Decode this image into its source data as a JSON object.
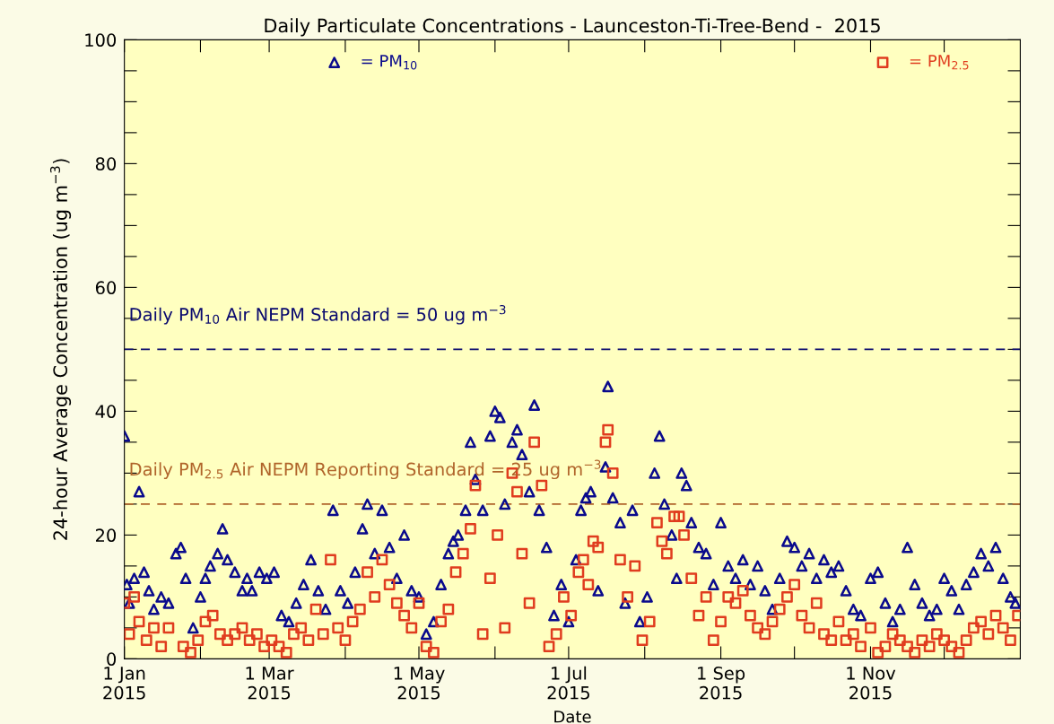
{
  "chart_data": {
    "type": "scatter",
    "title": "Daily Particulate Concentrations - Launceston-Ti-Tree-Bend -  2015",
    "xlabel": "Date",
    "ylabel": "24-hour Average Concentration (ug m$^{−3}$)",
    "xlim": [
      "2015-01-01",
      "2016-01-01"
    ],
    "xticks": [
      {
        "value": "2015-01-01",
        "label": "1 Jan\n2015"
      },
      {
        "value": "2015-02-01",
        "label": null
      },
      {
        "value": "2015-03-01",
        "label": "1 Mar\n2015"
      },
      {
        "value": "2015-04-01",
        "label": null
      },
      {
        "value": "2015-05-01",
        "label": "1 May\n2015"
      },
      {
        "value": "2015-06-01",
        "label": null
      },
      {
        "value": "2015-07-01",
        "label": "1 Jul\n2015"
      },
      {
        "value": "2015-08-01",
        "label": null
      },
      {
        "value": "2015-09-01",
        "label": "1 Sep\n2015"
      },
      {
        "value": "2015-10-01",
        "label": null
      },
      {
        "value": "2015-11-01",
        "label": "1 Nov\n2015"
      },
      {
        "value": "2015-12-01",
        "label": null
      }
    ],
    "ylim": [
      0,
      100
    ],
    "yticks": [
      0,
      {
        "value": 5,
        "label": null
      },
      {
        "value": 10,
        "label": null
      },
      {
        "value": 15,
        "label": null
      },
      20,
      {
        "value": 25,
        "label": null
      },
      {
        "value": 30,
        "label": null
      },
      {
        "value": 35,
        "label": null
      },
      40,
      {
        "value": 45,
        "label": null
      },
      {
        "value": 50,
        "label": null
      },
      {
        "value": 55,
        "label": null
      },
      60,
      {
        "value": 65,
        "label": null
      },
      {
        "value": 70,
        "label": null
      },
      {
        "value": 75,
        "label": null
      },
      80,
      {
        "value": 85,
        "label": null
      },
      {
        "value": 90,
        "label": null
      },
      {
        "value": 95,
        "label": null
      },
      100
    ],
    "grid": false,
    "legend": "top",
    "ref_lines": [
      {
        "axis": "y",
        "value": 50,
        "label": "Daily PM$_{10}$ Air NEPM Standard = 50 ug m$^{−3}$",
        "color": "#0a0a6e",
        "line_style": "dashed"
      },
      {
        "axis": "y",
        "value": 25,
        "label": "Daily PM$_{2.5}$ Air NEPM Reporting Standard = 25 ug m$^{−3}$",
        "color": "#b0642a",
        "line_style": "dashed"
      }
    ],
    "series": [
      {
        "name": "= PM$_{10}$",
        "color": "#0a0a8c",
        "marker": "triangle",
        "x": [
          "2015-01-01",
          "2015-01-02",
          "2015-01-03",
          "2015-01-05",
          "2015-01-07",
          "2015-01-09",
          "2015-01-11",
          "2015-01-13",
          "2015-01-16",
          "2015-01-19",
          "2015-01-22",
          "2015-01-24",
          "2015-01-26",
          "2015-01-29",
          "2015-02-01",
          "2015-02-03",
          "2015-02-05",
          "2015-02-08",
          "2015-02-10",
          "2015-02-12",
          "2015-02-15",
          "2015-02-18",
          "2015-02-20",
          "2015-02-22",
          "2015-02-25",
          "2015-02-28",
          "2015-03-03",
          "2015-03-06",
          "2015-03-09",
          "2015-03-12",
          "2015-03-15",
          "2015-03-18",
          "2015-03-21",
          "2015-03-24",
          "2015-03-27",
          "2015-03-30",
          "2015-04-02",
          "2015-04-05",
          "2015-04-08",
          "2015-04-10",
          "2015-04-13",
          "2015-04-16",
          "2015-04-19",
          "2015-04-22",
          "2015-04-25",
          "2015-04-28",
          "2015-05-01",
          "2015-05-04",
          "2015-05-07",
          "2015-05-10",
          "2015-05-13",
          "2015-05-15",
          "2015-05-17",
          "2015-05-20",
          "2015-05-22",
          "2015-05-24",
          "2015-05-27",
          "2015-05-30",
          "2015-06-01",
          "2015-06-03",
          "2015-06-05",
          "2015-06-08",
          "2015-06-10",
          "2015-06-12",
          "2015-06-15",
          "2015-06-17",
          "2015-06-19",
          "2015-06-22",
          "2015-06-25",
          "2015-06-28",
          "2015-07-01",
          "2015-07-04",
          "2015-07-06",
          "2015-07-08",
          "2015-07-10",
          "2015-07-13",
          "2015-07-16",
          "2015-07-17",
          "2015-07-19",
          "2015-07-22",
          "2015-07-24",
          "2015-07-27",
          "2015-07-30",
          "2015-08-02",
          "2015-08-05",
          "2015-08-07",
          "2015-08-09",
          "2015-08-12",
          "2015-08-14",
          "2015-08-16",
          "2015-08-18",
          "2015-08-20",
          "2015-08-23",
          "2015-08-26",
          "2015-08-29",
          "2015-09-01",
          "2015-09-04",
          "2015-09-07",
          "2015-09-10",
          "2015-09-13",
          "2015-09-16",
          "2015-09-19",
          "2015-09-22",
          "2015-09-25",
          "2015-09-28",
          "2015-10-01",
          "2015-10-04",
          "2015-10-07",
          "2015-10-10",
          "2015-10-13",
          "2015-10-16",
          "2015-10-19",
          "2015-10-22",
          "2015-10-25",
          "2015-10-28",
          "2015-11-01",
          "2015-11-04",
          "2015-11-07",
          "2015-11-10",
          "2015-11-13",
          "2015-11-16",
          "2015-11-19",
          "2015-11-22",
          "2015-11-25",
          "2015-11-28",
          "2015-12-01",
          "2015-12-04",
          "2015-12-07",
          "2015-12-10",
          "2015-12-13",
          "2015-12-16",
          "2015-12-19",
          "2015-12-22",
          "2015-12-25",
          "2015-12-28",
          "2015-12-30"
        ],
        "values": [
          36,
          12,
          9,
          13,
          27,
          14,
          11,
          8,
          10,
          9,
          17,
          18,
          13,
          5,
          10,
          13,
          15,
          17,
          21,
          16,
          14,
          11,
          13,
          11,
          14,
          13,
          14,
          7,
          6,
          9,
          12,
          16,
          11,
          8,
          24,
          11,
          9,
          14,
          21,
          25,
          17,
          24,
          18,
          13,
          20,
          11,
          10,
          4,
          6,
          12,
          17,
          19,
          20,
          24,
          35,
          29,
          24,
          36,
          40,
          39,
          25,
          35,
          37,
          33,
          27,
          41,
          24,
          18,
          7,
          12,
          6,
          16,
          24,
          26,
          27,
          11,
          31,
          44,
          26,
          22,
          9,
          24,
          6,
          10,
          30,
          36,
          25,
          20,
          13,
          30,
          28,
          22,
          18,
          17,
          12,
          22,
          15,
          13,
          16,
          12,
          15,
          11,
          8,
          13,
          19,
          18,
          15,
          17,
          13,
          16,
          14,
          15,
          11,
          8,
          7,
          13,
          14,
          9,
          6,
          8,
          18,
          12,
          9,
          7,
          8,
          13,
          11,
          8,
          12,
          14,
          17,
          15,
          18,
          13,
          10,
          9
        ]
      },
      {
        "name": "= PM$_{2.5}$",
        "color": "#e03c1e",
        "marker": "square",
        "x": [
          "2015-01-01",
          "2015-01-03",
          "2015-01-05",
          "2015-01-07",
          "2015-01-10",
          "2015-01-13",
          "2015-01-16",
          "2015-01-19",
          "2015-01-25",
          "2015-01-28",
          "2015-01-31",
          "2015-02-03",
          "2015-02-06",
          "2015-02-09",
          "2015-02-12",
          "2015-02-15",
          "2015-02-18",
          "2015-02-21",
          "2015-02-24",
          "2015-02-27",
          "2015-03-02",
          "2015-03-05",
          "2015-03-08",
          "2015-03-11",
          "2015-03-14",
          "2015-03-17",
          "2015-03-20",
          "2015-03-23",
          "2015-03-26",
          "2015-03-29",
          "2015-04-01",
          "2015-04-04",
          "2015-04-07",
          "2015-04-10",
          "2015-04-13",
          "2015-04-16",
          "2015-04-19",
          "2015-04-22",
          "2015-04-25",
          "2015-04-28",
          "2015-05-01",
          "2015-05-04",
          "2015-05-07",
          "2015-05-10",
          "2015-05-13",
          "2015-05-16",
          "2015-05-19",
          "2015-05-22",
          "2015-05-24",
          "2015-05-27",
          "2015-05-30",
          "2015-06-02",
          "2015-06-05",
          "2015-06-08",
          "2015-06-10",
          "2015-06-12",
          "2015-06-15",
          "2015-06-17",
          "2015-06-20",
          "2015-06-23",
          "2015-06-26",
          "2015-06-29",
          "2015-07-02",
          "2015-07-05",
          "2015-07-07",
          "2015-07-09",
          "2015-07-11",
          "2015-07-13",
          "2015-07-16",
          "2015-07-17",
          "2015-07-19",
          "2015-07-22",
          "2015-07-25",
          "2015-07-28",
          "2015-07-31",
          "2015-08-03",
          "2015-08-06",
          "2015-08-08",
          "2015-08-10",
          "2015-08-13",
          "2015-08-15",
          "2015-08-17",
          "2015-08-20",
          "2015-08-23",
          "2015-08-26",
          "2015-08-29",
          "2015-09-01",
          "2015-09-04",
          "2015-09-07",
          "2015-09-10",
          "2015-09-13",
          "2015-09-16",
          "2015-09-19",
          "2015-09-22",
          "2015-09-25",
          "2015-09-28",
          "2015-10-01",
          "2015-10-04",
          "2015-10-07",
          "2015-10-10",
          "2015-10-13",
          "2015-10-16",
          "2015-10-19",
          "2015-10-22",
          "2015-10-25",
          "2015-10-28",
          "2015-11-01",
          "2015-11-04",
          "2015-11-07",
          "2015-11-10",
          "2015-11-13",
          "2015-11-16",
          "2015-11-19",
          "2015-11-22",
          "2015-11-25",
          "2015-11-28",
          "2015-12-01",
          "2015-12-04",
          "2015-12-07",
          "2015-12-10",
          "2015-12-13",
          "2015-12-16",
          "2015-12-19",
          "2015-12-22",
          "2015-12-25",
          "2015-12-28",
          "2015-12-31"
        ],
        "values": [
          9,
          4,
          10,
          6,
          3,
          5,
          2,
          5,
          2,
          1,
          3,
          6,
          7,
          4,
          3,
          4,
          5,
          3,
          4,
          2,
          3,
          2,
          1,
          4,
          5,
          3,
          8,
          4,
          16,
          5,
          3,
          6,
          8,
          14,
          10,
          16,
          12,
          9,
          7,
          5,
          9,
          2,
          1,
          6,
          8,
          14,
          17,
          21,
          28,
          4,
          13,
          20,
          5,
          30,
          27,
          17,
          9,
          35,
          28,
          2,
          4,
          10,
          7,
          14,
          16,
          12,
          19,
          18,
          35,
          37,
          30,
          16,
          10,
          15,
          3,
          6,
          22,
          19,
          17,
          23,
          23,
          20,
          13,
          7,
          10,
          3,
          6,
          10,
          9,
          11,
          7,
          5,
          4,
          6,
          8,
          10,
          12,
          7,
          5,
          9,
          4,
          3,
          6,
          3,
          4,
          2,
          5,
          1,
          2,
          4,
          3,
          2,
          1,
          3,
          2,
          4,
          3,
          2,
          1,
          3,
          5,
          6,
          4,
          7,
          5,
          3,
          7
        ]
      }
    ]
  }
}
